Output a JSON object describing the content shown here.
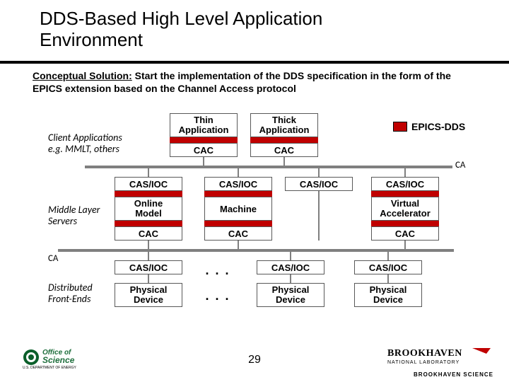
{
  "title": "DDS-Based High Level Application\nEnvironment",
  "subtitle_lead": "Conceptual Solution:",
  "subtitle_rest": " Start the implementation of the DDS specification in the form of the EPICS extension based on the Channel Access protocol",
  "legend_label": "EPICS-DDS",
  "labels": {
    "client_apps_1": "Client Applications",
    "client_apps_2": "e.g. MMLT, others",
    "middle_1": "Middle Layer",
    "middle_2": "Servers",
    "dist_1": "Distributed",
    "dist_2": "Front-Ends",
    "ca_right": "CA",
    "ca_left": "CA"
  },
  "row1": {
    "thin": "Thin\nApplication",
    "thick": "Thick\nApplication",
    "cac": "CAC"
  },
  "row2": {
    "casioc": "CAS/IOC",
    "online": "Online\nModel",
    "machine": "Machine",
    "va": "Virtual\nAccelerator",
    "cac": "CAC"
  },
  "row3": {
    "casioc": "CAS/IOC",
    "pd": "Physical\nDevice"
  },
  "dots": ". . .",
  "page_number": "29",
  "footer": {
    "bnl_line1": "BROOKHAVEN",
    "bnl_line2": "NATIONAL LABORATORY",
    "sci_line": "BROOKHAVEN SCIENCE"
  },
  "colors": {
    "red": "#c00000",
    "grey": "#7f7f7f",
    "box_border": "#595959"
  },
  "logos": {
    "office_of_science_title": "Office of Science",
    "office_of_science_dept": "U.S. DEPARTMENT OF ENERGY"
  }
}
